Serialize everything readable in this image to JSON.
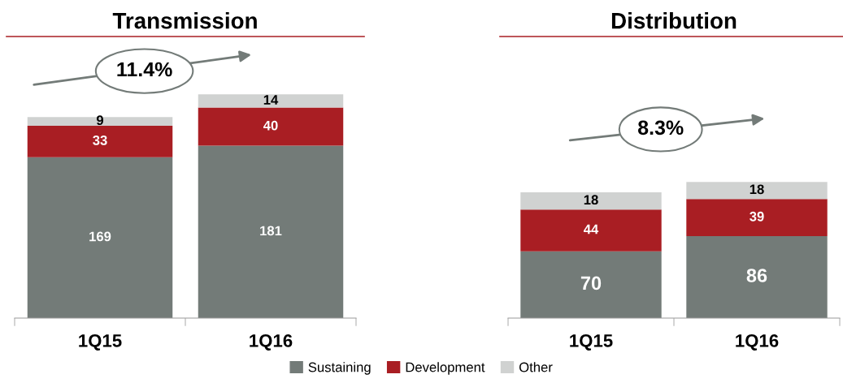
{
  "chart_data": [
    {
      "type": "bar",
      "title": "Transmission",
      "stacked": true,
      "data_labels": true,
      "categories": [
        "1Q15",
        "1Q16"
      ],
      "series": [
        {
          "name": "Sustaining",
          "color": "#737b78",
          "values": [
            169,
            181
          ]
        },
        {
          "name": "Development",
          "color": "#a91e23",
          "values": [
            33,
            40
          ]
        },
        {
          "name": "Other",
          "color": "#d0d2d1",
          "values": [
            9,
            14
          ]
        }
      ],
      "annotations": [
        "11.4%"
      ],
      "legend": "bottom"
    },
    {
      "type": "bar",
      "title": "Distribution",
      "stacked": true,
      "data_labels": true,
      "categories": [
        "1Q15",
        "1Q16"
      ],
      "series": [
        {
          "name": "Sustaining",
          "color": "#737b78",
          "values": [
            70,
            86
          ]
        },
        {
          "name": "Development",
          "color": "#a91e23",
          "values": [
            44,
            39
          ]
        },
        {
          "name": "Other",
          "color": "#d0d2d1",
          "values": [
            18,
            18
          ]
        }
      ],
      "annotations": [
        "8.3%"
      ],
      "legend": "bottom"
    }
  ]
}
